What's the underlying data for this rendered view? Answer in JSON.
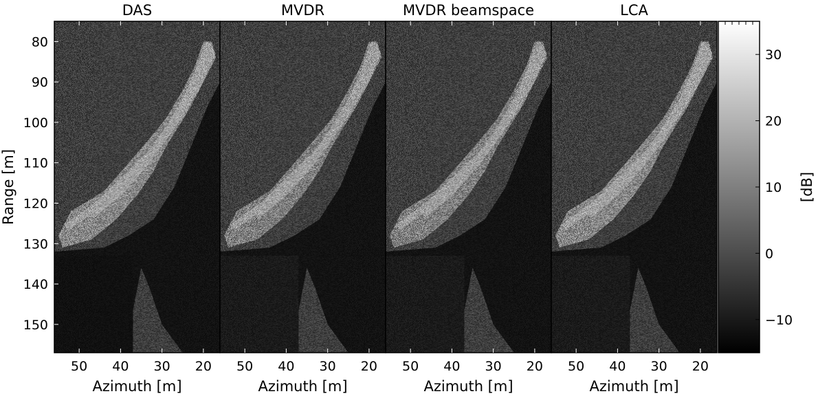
{
  "chart_data": [
    {
      "type": "heatmap",
      "title": "DAS",
      "xlabel": "Azimuth [m]",
      "ylabel": "Range [m]",
      "xlim": [
        56,
        16
      ],
      "ylim": [
        75,
        157
      ],
      "x_ticks": [
        50,
        40,
        30,
        20
      ],
      "y_ticks": [
        80,
        90,
        100,
        110,
        120,
        130,
        140,
        150
      ],
      "target_edge": "sharp"
    },
    {
      "type": "heatmap",
      "title": "MVDR",
      "xlabel": "Azimuth [m]",
      "ylabel": "",
      "xlim": [
        56,
        16
      ],
      "ylim": [
        75,
        157
      ],
      "x_ticks": [
        50,
        40,
        30,
        20
      ],
      "target_edge": "smooth"
    },
    {
      "type": "heatmap",
      "title": "MVDR beamspace",
      "xlabel": "Azimuth [m]",
      "ylabel": "",
      "xlim": [
        56,
        16
      ],
      "ylim": [
        75,
        157
      ],
      "x_ticks": [
        50,
        40,
        30,
        20
      ],
      "target_edge": "smooth"
    },
    {
      "type": "heatmap",
      "title": "LCA",
      "xlabel": "Azimuth [m]",
      "ylabel": "",
      "xlim": [
        56,
        16
      ],
      "ylim": [
        75,
        157
      ],
      "x_ticks": [
        50,
        40,
        30,
        20
      ],
      "target_edge": "sharp"
    }
  ],
  "colorbar": {
    "label": "[dB]",
    "range": [
      -15,
      35
    ],
    "ticks": [
      30,
      20,
      10,
      0,
      -10
    ],
    "tick_labels": [
      "30",
      "20",
      "10",
      "0",
      "−10"
    ],
    "colormap": "gray"
  },
  "colors": {
    "background": "#ffffff",
    "axis": "#000000"
  }
}
